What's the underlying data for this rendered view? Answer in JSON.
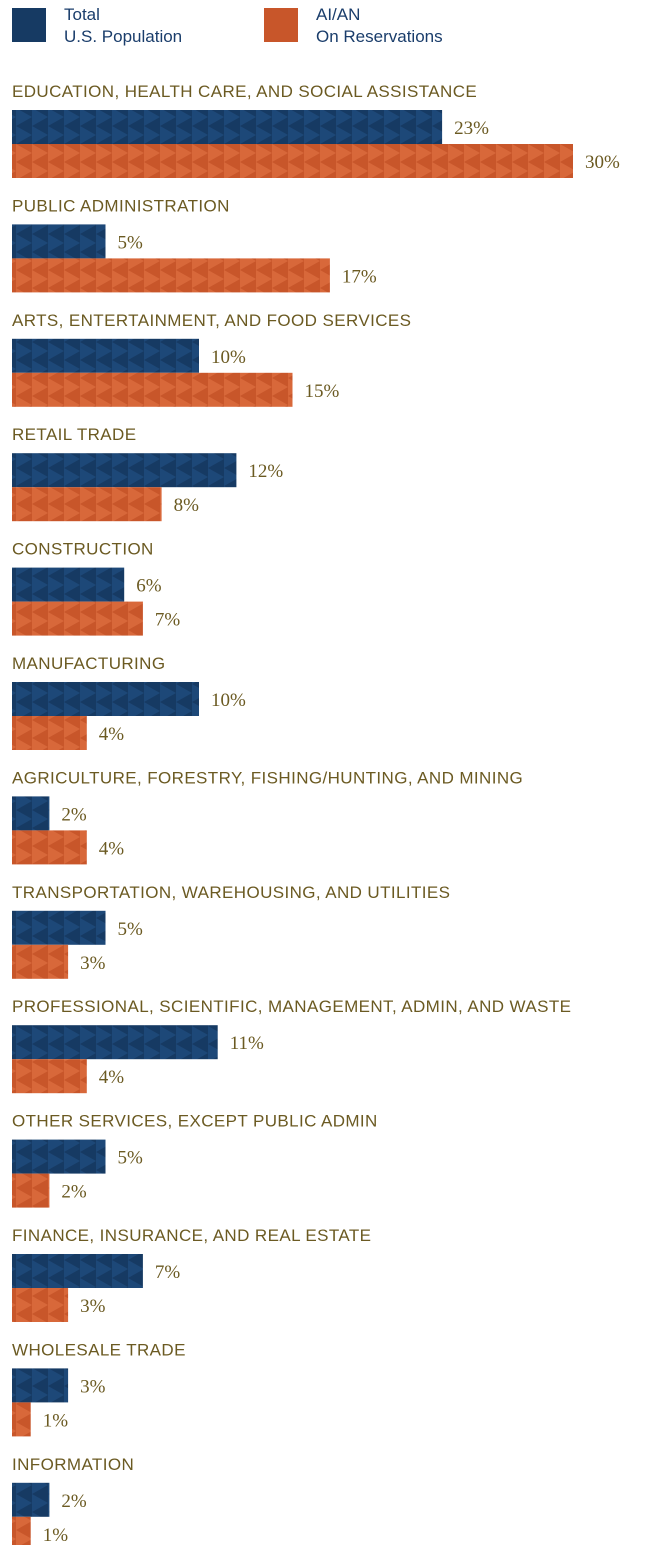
{
  "colors": {
    "total": "#163a63",
    "aian": "#c8562a",
    "label": "#6b5a22"
  },
  "legend": [
    {
      "name": "Total",
      "name2": "U.S. Population",
      "color": "#163a63"
    },
    {
      "name": "AI/AN",
      "name2": "On Reservations",
      "color": "#c8562a"
    }
  ],
  "chart_data": {
    "type": "bar",
    "orientation": "horizontal",
    "series": [
      {
        "name": "Total U.S. Population",
        "values": [
          23,
          5,
          10,
          12,
          6,
          10,
          2,
          5,
          11,
          5,
          7,
          3,
          2
        ],
        "labels": [
          "23%",
          "5%",
          "10%",
          "12%",
          "6%",
          "10%",
          "2%",
          "5%",
          "11%",
          "5%",
          "7%",
          "3%",
          "2%"
        ]
      },
      {
        "name": "AI/AN On Reservations",
        "values": [
          30,
          17,
          15,
          8,
          7,
          4,
          4,
          3,
          4,
          2,
          3,
          1,
          1
        ],
        "labels": [
          "30%",
          "17%",
          "15%",
          "8%",
          "7%",
          "4%",
          "4%",
          "3%",
          "4%",
          "2%",
          "3%",
          "1%",
          "1%"
        ]
      }
    ],
    "categories": [
      "EDUCATION, HEALTH CARE, AND SOCIAL ASSISTANCE",
      "PUBLIC ADMINISTRATION",
      "ARTS, ENTERTAINMENT, AND FOOD SERVICES",
      "RETAIL TRADE",
      "CONSTRUCTION",
      "MANUFACTURING",
      "AGRICULTURE, FORESTRY, FISHING/HUNTING, AND MINING",
      "TRANSPORTATION, WAREHOUSING, AND UTILITIES",
      "PROFESSIONAL, SCIENTIFIC, MANAGEMENT, ADMIN, AND WASTE",
      "OTHER SERVICES, EXCEPT PUBLIC ADMIN",
      "FINANCE, INSURANCE, AND REAL ESTATE",
      "WHOLESALE TRADE",
      "INFORMATION"
    ],
    "legend": "top",
    "grid": false
  }
}
